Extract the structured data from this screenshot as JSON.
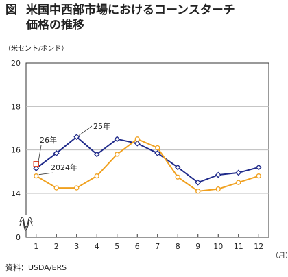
{
  "title": {
    "label": "図",
    "line1": "米国中西部市場におけるコーンスターチ",
    "line2": "価格の推移"
  },
  "unit_label": "（米セント/ポンド）",
  "source": "資料：USDA/ERS",
  "colors": {
    "series_25": "#1f2a8a",
    "series_2024": "#f0a01e",
    "marker_26": "#e0462b",
    "axis": "#333333",
    "grid": "#bdbdbd"
  },
  "chart_data": {
    "type": "line",
    "x": [
      1,
      2,
      3,
      4,
      5,
      6,
      7,
      8,
      9,
      10,
      11,
      12
    ],
    "xlabel": "（月）",
    "ylabel": "",
    "ylim": [
      14,
      20
    ],
    "ytick_labels": [
      "20",
      "18",
      "16",
      "14",
      "0"
    ],
    "y_tick_values": [
      20,
      18,
      16,
      14
    ],
    "axis_break": true,
    "grid": "horizontal",
    "series": [
      {
        "name": "25年",
        "color": "#1f2a8a",
        "values": [
          15.15,
          15.85,
          16.6,
          15.8,
          16.5,
          16.3,
          15.85,
          15.2,
          14.5,
          14.85,
          14.95,
          15.2
        ]
      },
      {
        "name": "2024年",
        "color": "#f0a01e",
        "values": [
          14.8,
          14.25,
          14.25,
          14.8,
          15.8,
          16.5,
          16.1,
          14.75,
          14.1,
          14.2,
          14.5,
          14.8
        ]
      },
      {
        "name": "26年",
        "color": "#e0462b",
        "marker": "square",
        "values": [
          15.35,
          null,
          null,
          null,
          null,
          null,
          null,
          null,
          null,
          null,
          null,
          null
        ]
      }
    ]
  }
}
